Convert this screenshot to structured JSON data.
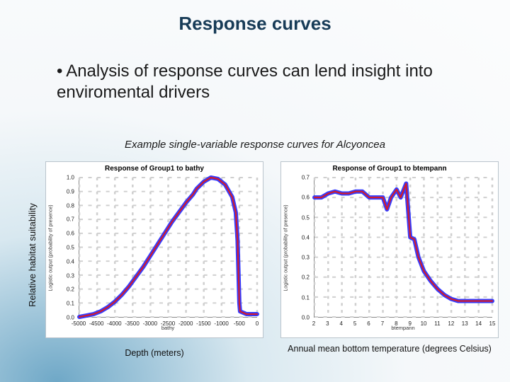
{
  "slide": {
    "title": "Response curves",
    "bullet_text": "Analysis of response curves can lend insight into enviromental drivers",
    "example_caption": "Example single-variable response curves for Alcyoncea",
    "outer_y_label": "Relative habitat suitability",
    "background_gradient": {
      "inner": "#6fa8c7",
      "mid": "#d8e8f0",
      "outer": "#fbfcfd"
    }
  },
  "colors": {
    "series_blue": "#2b33ff",
    "series_red": "#d11b2b",
    "panel_bg": "#ffffff",
    "panel_border": "#bac4cc",
    "grid": "#cfcfcf",
    "title_color": "#173b57",
    "text_color": "#1a1a1a"
  },
  "chart_left": {
    "type": "line",
    "title": "Response of Group1 to bathy",
    "inner_x_label": "bathy",
    "inner_y_label": "Logistic output (probability of presence)",
    "x_caption": "Depth (meters)",
    "xlim": [
      -5000,
      0
    ],
    "ylim": [
      0.0,
      1.0
    ],
    "x_ticks": [
      -5000,
      -4500,
      -4000,
      -3500,
      -3000,
      -2500,
      -2000,
      -1500,
      -1000,
      -500,
      0
    ],
    "y_ticks": [
      0.0,
      0.1,
      0.2,
      0.3,
      0.4,
      0.5,
      0.6,
      0.7,
      0.8,
      0.9,
      1.0
    ],
    "series": [
      {
        "color_key": "series_blue",
        "width": 6,
        "x": [
          -5000,
          -4800,
          -4600,
          -4400,
          -4200,
          -4000,
          -3800,
          -3600,
          -3400,
          -3200,
          -3000,
          -2800,
          -2600,
          -2400,
          -2200,
          -2000,
          -1800,
          -1700,
          -1500,
          -1300,
          -1100,
          -900,
          -700,
          -600,
          -550,
          -500,
          -480,
          -300,
          -150,
          0
        ],
        "y": [
          0.0,
          0.01,
          0.02,
          0.04,
          0.07,
          0.11,
          0.16,
          0.22,
          0.29,
          0.36,
          0.44,
          0.52,
          0.6,
          0.68,
          0.75,
          0.82,
          0.88,
          0.92,
          0.97,
          1.0,
          0.99,
          0.95,
          0.86,
          0.75,
          0.55,
          0.1,
          0.04,
          0.02,
          0.02,
          0.02
        ]
      },
      {
        "color_key": "series_red",
        "width": 2.2,
        "x": [
          -5000,
          -4800,
          -4600,
          -4400,
          -4200,
          -4000,
          -3800,
          -3600,
          -3400,
          -3200,
          -3000,
          -2800,
          -2600,
          -2400,
          -2200,
          -2000,
          -1800,
          -1700,
          -1500,
          -1300,
          -1100,
          -900,
          -700,
          -600,
          -550,
          -500,
          -480,
          -300,
          -150,
          0
        ],
        "y": [
          0.0,
          0.01,
          0.02,
          0.04,
          0.07,
          0.11,
          0.16,
          0.22,
          0.29,
          0.36,
          0.44,
          0.52,
          0.6,
          0.68,
          0.75,
          0.82,
          0.88,
          0.92,
          0.97,
          1.0,
          0.99,
          0.95,
          0.86,
          0.75,
          0.55,
          0.1,
          0.04,
          0.02,
          0.02,
          0.02
        ]
      }
    ]
  },
  "chart_right": {
    "type": "line",
    "title": "Response of Group1 to btempann",
    "inner_x_label": "btempann",
    "inner_y_label": "Logistic output (probability of presence)",
    "x_caption": "Annual mean bottom temperature (degrees Celsius)",
    "xlim": [
      2,
      15
    ],
    "ylim": [
      0.0,
      0.7
    ],
    "x_ticks": [
      2,
      3,
      4,
      5,
      6,
      7,
      8,
      9,
      10,
      11,
      12,
      13,
      14,
      15
    ],
    "y_ticks": [
      0.0,
      0.1,
      0.2,
      0.3,
      0.4,
      0.5,
      0.6,
      0.7
    ],
    "series": [
      {
        "color_key": "series_blue",
        "width": 6,
        "x": [
          2.0,
          2.5,
          3.0,
          3.5,
          4.0,
          4.5,
          5.0,
          5.5,
          6.0,
          6.5,
          7.0,
          7.3,
          7.6,
          8.0,
          8.3,
          8.7,
          9.0,
          9.3,
          9.6,
          10.0,
          10.5,
          11.0,
          11.5,
          12.0,
          12.5,
          13.0,
          13.5,
          14.0,
          14.5,
          15.0
        ],
        "y": [
          0.6,
          0.6,
          0.62,
          0.63,
          0.62,
          0.62,
          0.63,
          0.63,
          0.6,
          0.6,
          0.6,
          0.54,
          0.6,
          0.64,
          0.6,
          0.67,
          0.4,
          0.39,
          0.3,
          0.23,
          0.18,
          0.14,
          0.11,
          0.09,
          0.08,
          0.08,
          0.08,
          0.08,
          0.08,
          0.08
        ]
      },
      {
        "color_key": "series_red",
        "width": 2.2,
        "x": [
          2.0,
          2.5,
          3.0,
          3.5,
          4.0,
          4.5,
          5.0,
          5.5,
          6.0,
          6.5,
          7.0,
          7.3,
          7.6,
          8.0,
          8.3,
          8.7,
          9.0,
          9.3,
          9.6,
          10.0,
          10.5,
          11.0,
          11.5,
          12.0,
          12.5,
          13.0,
          13.5,
          14.0,
          14.5,
          15.0
        ],
        "y": [
          0.6,
          0.6,
          0.62,
          0.63,
          0.62,
          0.62,
          0.63,
          0.63,
          0.6,
          0.6,
          0.6,
          0.54,
          0.6,
          0.64,
          0.6,
          0.67,
          0.4,
          0.39,
          0.3,
          0.23,
          0.18,
          0.14,
          0.11,
          0.09,
          0.08,
          0.08,
          0.08,
          0.08,
          0.08,
          0.08
        ]
      }
    ]
  }
}
